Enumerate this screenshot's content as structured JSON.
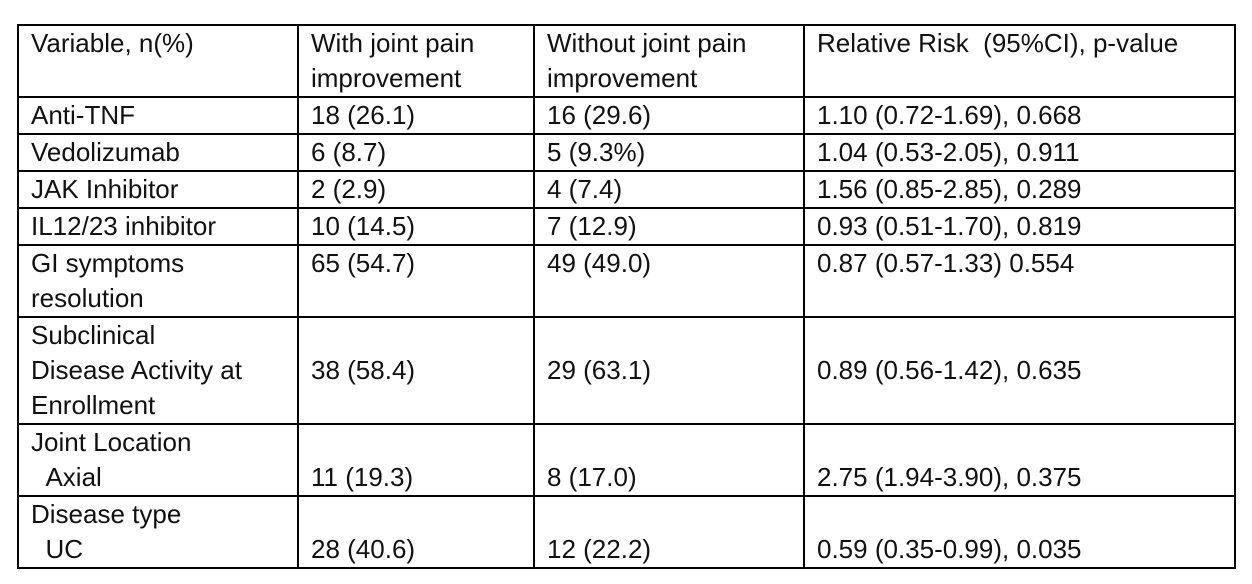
{
  "table": {
    "header": [
      "Variable, n(%)",
      "With joint pain\nimprovement",
      "Without joint pain\nimprovement",
      "Relative Risk  (95%CI), p-value"
    ],
    "rows": [
      [
        "Anti-TNF",
        "18 (26.1)",
        "16 (29.6)",
        "1.10 (0.72-1.69), 0.668"
      ],
      [
        "Vedolizumab",
        "6 (8.7)",
        "5 (9.3%)",
        "1.04 (0.53-2.05), 0.911"
      ],
      [
        "JAK Inhibitor",
        "2 (2.9)",
        "4 (7.4)",
        "1.56 (0.85-2.85), 0.289"
      ],
      [
        "IL12/23 inhibitor",
        "10 (14.5)",
        "7 (12.9)",
        "0.93 (0.51-1.70), 0.819"
      ],
      [
        "GI symptoms\nresolution",
        "65 (54.7)",
        "49 (49.0)",
        "0.87 (0.57-1.33) 0.554"
      ],
      [
        "Subclinical\nDisease Activity at\nEnrollment",
        "38 (58.4)",
        "29 (63.1)",
        "0.89 (0.56-1.42), 0.635"
      ],
      [
        "Joint Location\n  Axial",
        "11 (19.3)",
        "8 (17.0)",
        "2.75 (1.94-3.90), 0.375"
      ],
      [
        "Disease type\n  UC",
        "28 (40.6)",
        "12 (22.2)",
        "0.59 (0.35-0.99), 0.035"
      ]
    ]
  }
}
